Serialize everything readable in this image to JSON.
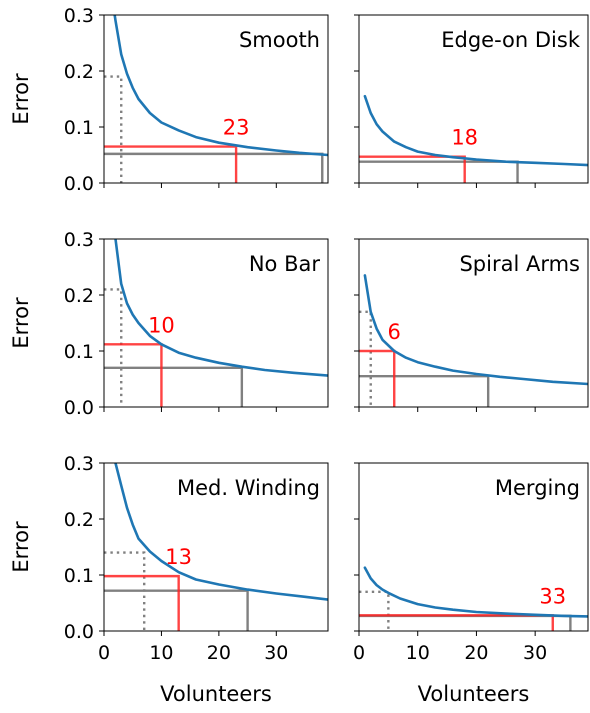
{
  "chart_data": {
    "type": "line",
    "layout": "3x2 grid of panels, shared axes",
    "xlabel": "Volunteers",
    "ylabel": "Error",
    "xlim": [
      0,
      39
    ],
    "ylim": [
      0,
      0.3
    ],
    "xticks": [
      "0",
      "10",
      "20",
      "30"
    ],
    "yticks": [
      "0.0",
      "0.1",
      "0.2",
      "0.3"
    ],
    "colors": {
      "curve": "#1f77b4",
      "red": "#ff2222",
      "gray": "#808080",
      "annotation": "#ff0000"
    },
    "panels": [
      {
        "title": "Smooth",
        "curve": [
          [
            1,
            0.36
          ],
          [
            2,
            0.29
          ],
          [
            3,
            0.23
          ],
          [
            4,
            0.195
          ],
          [
            5,
            0.17
          ],
          [
            6,
            0.15
          ],
          [
            8,
            0.125
          ],
          [
            10,
            0.108
          ],
          [
            13,
            0.094
          ],
          [
            16,
            0.082
          ],
          [
            20,
            0.072
          ],
          [
            25,
            0.064
          ],
          [
            30,
            0.058
          ],
          [
            34,
            0.054
          ],
          [
            39,
            0.05
          ]
        ],
        "red": {
          "x": 23,
          "y": 0.065,
          "label": "23"
        },
        "gray": {
          "x": 38,
          "y": 0.052
        },
        "dotted": {
          "x": 3,
          "y": 0.19
        }
      },
      {
        "title": "Edge-on Disk",
        "curve": [
          [
            1,
            0.155
          ],
          [
            2,
            0.125
          ],
          [
            3,
            0.105
          ],
          [
            4,
            0.092
          ],
          [
            6,
            0.074
          ],
          [
            8,
            0.064
          ],
          [
            10,
            0.056
          ],
          [
            13,
            0.05
          ],
          [
            16,
            0.046
          ],
          [
            20,
            0.042
          ],
          [
            25,
            0.038
          ],
          [
            30,
            0.036
          ],
          [
            35,
            0.034
          ],
          [
            39,
            0.032
          ]
        ],
        "red": {
          "x": 18,
          "y": 0.047,
          "label": "18"
        },
        "gray": {
          "x": 27,
          "y": 0.038
        }
      },
      {
        "title": "No Bar",
        "curve": [
          [
            2,
            0.3
          ],
          [
            3,
            0.22
          ],
          [
            4,
            0.185
          ],
          [
            5,
            0.165
          ],
          [
            6,
            0.15
          ],
          [
            8,
            0.127
          ],
          [
            10,
            0.112
          ],
          [
            13,
            0.097
          ],
          [
            16,
            0.088
          ],
          [
            20,
            0.079
          ],
          [
            24,
            0.072
          ],
          [
            28,
            0.066
          ],
          [
            33,
            0.061
          ],
          [
            39,
            0.056
          ]
        ],
        "red": {
          "x": 10,
          "y": 0.112,
          "label": "10"
        },
        "gray": {
          "x": 24,
          "y": 0.07
        },
        "dotted": {
          "x": 3,
          "y": 0.21
        }
      },
      {
        "title": "Spiral Arms",
        "curve": [
          [
            1,
            0.235
          ],
          [
            2,
            0.17
          ],
          [
            3,
            0.14
          ],
          [
            4,
            0.12
          ],
          [
            6,
            0.1
          ],
          [
            8,
            0.088
          ],
          [
            10,
            0.08
          ],
          [
            13,
            0.072
          ],
          [
            16,
            0.065
          ],
          [
            20,
            0.059
          ],
          [
            24,
            0.054
          ],
          [
            28,
            0.05
          ],
          [
            33,
            0.045
          ],
          [
            39,
            0.041
          ]
        ],
        "red": {
          "x": 6,
          "y": 0.1,
          "label": "6"
        },
        "gray": {
          "x": 22,
          "y": 0.055
        },
        "dotted": {
          "x": 2,
          "y": 0.17
        }
      },
      {
        "title": "Med. Winding",
        "curve": [
          [
            2,
            0.3
          ],
          [
            3,
            0.26
          ],
          [
            4,
            0.22
          ],
          [
            5,
            0.19
          ],
          [
            6,
            0.165
          ],
          [
            8,
            0.142
          ],
          [
            10,
            0.125
          ],
          [
            13,
            0.105
          ],
          [
            16,
            0.092
          ],
          [
            20,
            0.083
          ],
          [
            25,
            0.074
          ],
          [
            30,
            0.067
          ],
          [
            35,
            0.061
          ],
          [
            39,
            0.056
          ]
        ],
        "red": {
          "x": 13,
          "y": 0.098,
          "label": "13"
        },
        "gray": {
          "x": 25,
          "y": 0.072
        },
        "dotted": {
          "x": 7,
          "y": 0.14
        }
      },
      {
        "title": "Merging",
        "curve": [
          [
            1,
            0.113
          ],
          [
            2,
            0.094
          ],
          [
            3,
            0.082
          ],
          [
            4,
            0.074
          ],
          [
            5,
            0.068
          ],
          [
            7,
            0.058
          ],
          [
            10,
            0.048
          ],
          [
            13,
            0.042
          ],
          [
            16,
            0.038
          ],
          [
            20,
            0.034
          ],
          [
            25,
            0.031
          ],
          [
            30,
            0.029
          ],
          [
            35,
            0.027
          ],
          [
            39,
            0.026
          ]
        ],
        "red": {
          "x": 33,
          "y": 0.028,
          "label": "33"
        },
        "gray": {
          "x": 36,
          "y": 0.027
        },
        "dotted": {
          "x": 5,
          "y": 0.07
        }
      }
    ]
  }
}
